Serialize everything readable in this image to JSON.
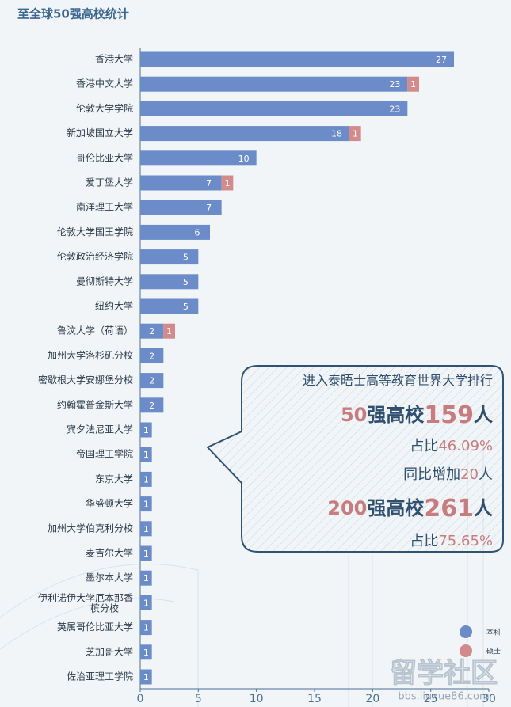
{
  "chart_data": {
    "type": "bar",
    "orientation": "horizontal",
    "stacked": true,
    "title": "至全球50强高校统计",
    "categories": [
      "香港大学",
      "香港中文大学",
      "伦敦大学学院",
      "新加坡国立大学",
      "哥伦比亚大学",
      "爱丁堡大学",
      "南洋理工大学",
      "伦敦大学国王学院",
      "伦敦政治经济学院",
      "曼彻斯特大学",
      "纽约大学",
      "鲁汶大学（荷语）",
      "加州大学洛杉矶分校",
      "密歇根大学安娜堡分校",
      "约翰霍普金斯大学",
      "宾夕法尼亚大学",
      "帝国理工学院",
      "东京大学",
      "华盛顿大学",
      "加州大学伯克利分校",
      "麦吉尔大学",
      "墨尔本大学",
      "伊利诺伊大学厄本那香槟分校",
      "英属哥伦比亚大学",
      "芝加哥大学",
      "佐治亚理工学院"
    ],
    "series": [
      {
        "name": "本科",
        "color": "#6b8cc8",
        "values": [
          27,
          23,
          23,
          18,
          10,
          7,
          7,
          6,
          5,
          5,
          5,
          2,
          2,
          2,
          2,
          1,
          1,
          1,
          1,
          1,
          1,
          1,
          1,
          1,
          1,
          1
        ]
      },
      {
        "name": "硕士",
        "color": "#d48a8a",
        "values": [
          null,
          1,
          null,
          1,
          null,
          1,
          null,
          null,
          null,
          null,
          null,
          1,
          null,
          null,
          null,
          null,
          null,
          null,
          null,
          null,
          null,
          null,
          null,
          null,
          null,
          null
        ]
      }
    ],
    "xlim": [
      0,
      30
    ],
    "xticks": [
      0,
      5,
      10,
      15,
      20,
      25,
      30
    ],
    "legend": "bottom-right"
  },
  "callout": {
    "lines": [
      [
        {
          "text": "进入泰晤士高等教育世界大学排行",
          "highlight": false
        }
      ],
      [
        {
          "text": "50",
          "highlight": true
        },
        {
          "text": "强高校",
          "highlight": false
        },
        {
          "text": "159",
          "highlight": true
        },
        {
          "text": "人",
          "highlight": false
        }
      ],
      [
        {
          "text": "占比",
          "highlight": false
        },
        {
          "text": "46.09%",
          "highlight": true
        }
      ],
      [
        {
          "text": "同比增加",
          "highlight": false
        },
        {
          "text": "20",
          "highlight": true
        },
        {
          "text": "人",
          "highlight": false
        }
      ],
      [
        {
          "text": "200",
          "highlight": true
        },
        {
          "text": "强高校",
          "highlight": false
        },
        {
          "text": "261",
          "highlight": true
        },
        {
          "text": "人",
          "highlight": false
        }
      ],
      [
        {
          "text": "占比",
          "highlight": false
        },
        {
          "text": "75.65%",
          "highlight": true
        }
      ]
    ]
  },
  "watermark": {
    "main": "留学社区",
    "url": "bbs.liuxue86.com"
  }
}
